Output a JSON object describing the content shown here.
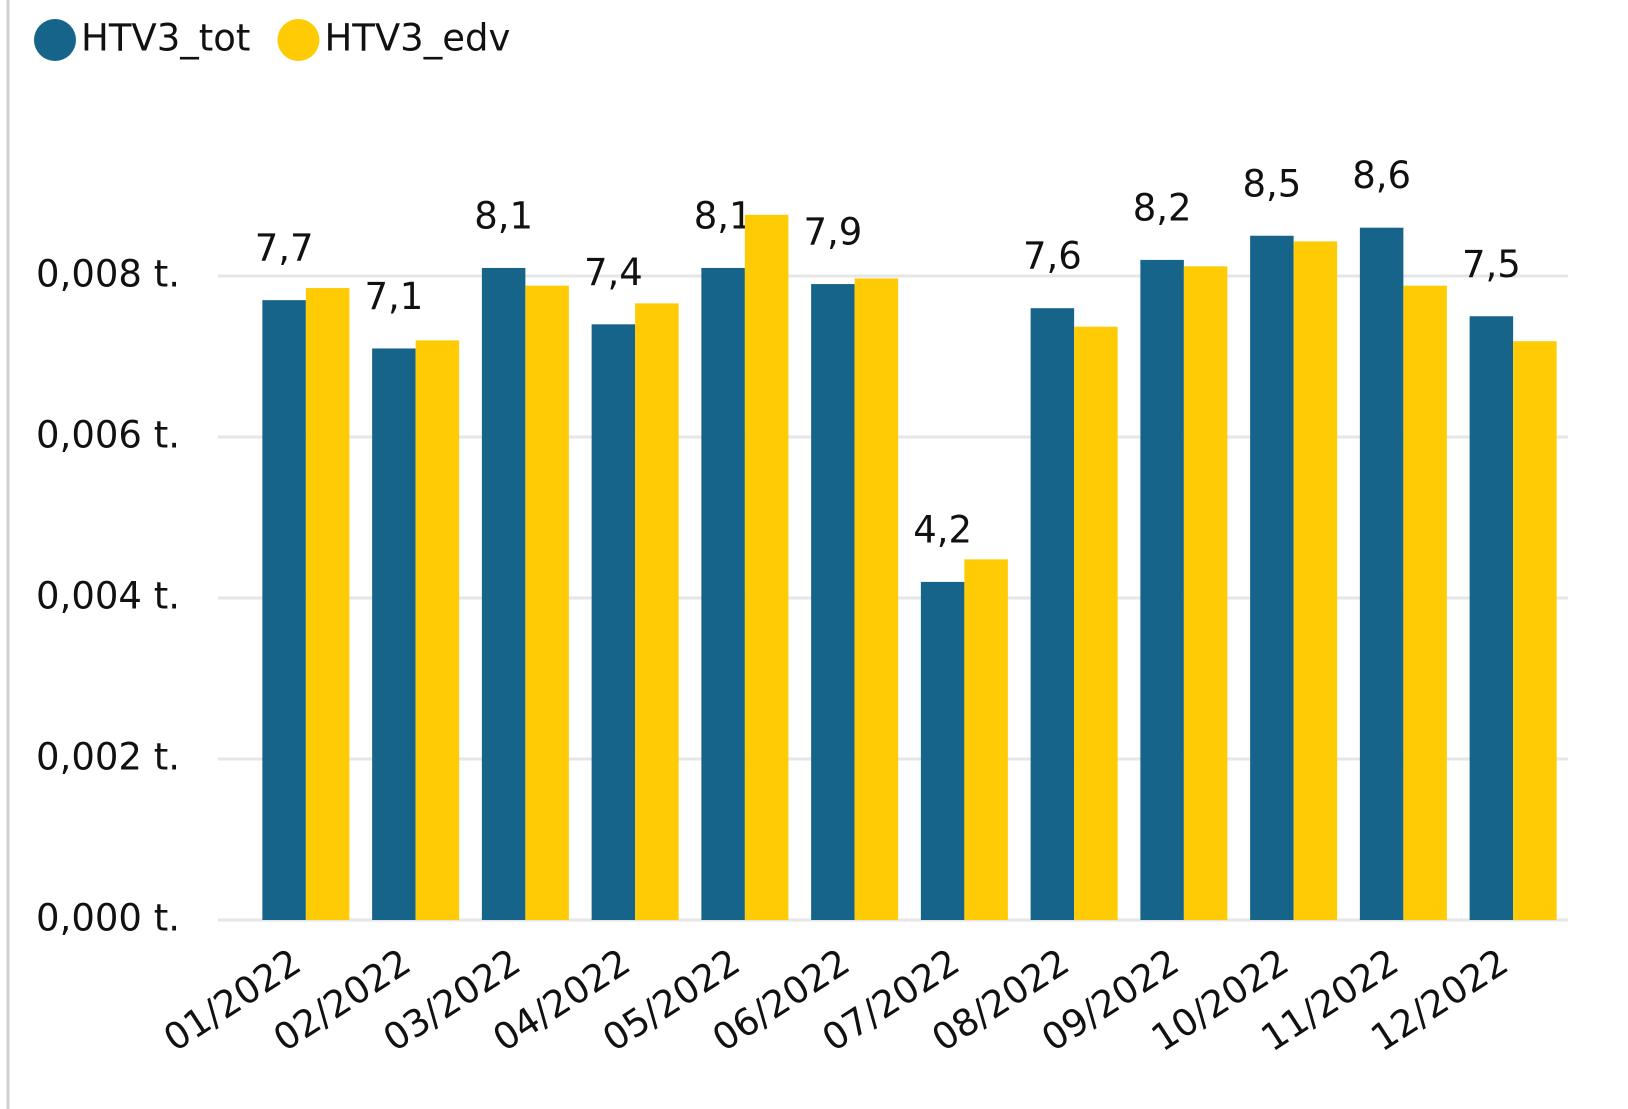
{
  "chart_data": {
    "type": "bar",
    "categories": [
      "01/2022",
      "02/2022",
      "03/2022",
      "04/2022",
      "05/2022",
      "06/2022",
      "07/2022",
      "08/2022",
      "09/2022",
      "10/2022",
      "11/2022",
      "12/2022"
    ],
    "series": [
      {
        "name": "HTV3_tot",
        "color": "#17648b",
        "values": [
          0.0077,
          0.0071,
          0.0081,
          0.0074,
          0.0081,
          0.0079,
          0.0042,
          0.0076,
          0.0082,
          0.0085,
          0.0086,
          0.0075
        ],
        "value_labels": [
          "7,7",
          "7,1",
          "8,1",
          "7,4",
          "8,1",
          "7,9",
          "4,2",
          "7,6",
          "8,2",
          "8,5",
          "8,6",
          "7,5"
        ]
      },
      {
        "name": "HTV3_edv",
        "color": "#fecb05",
        "values": [
          0.00785,
          0.0072,
          0.00788,
          0.00766,
          0.00876,
          0.00797,
          0.00448,
          0.00737,
          0.00812,
          0.00843,
          0.00788,
          0.00719
        ]
      }
    ],
    "ylim": [
      0,
      0.01
    ],
    "yticks": [
      {
        "value": 0,
        "label": "0,000 t."
      },
      {
        "value": 0.002,
        "label": "0,002 t."
      },
      {
        "value": 0.004,
        "label": "0,004 t."
      },
      {
        "value": 0.006,
        "label": "0,006 t."
      },
      {
        "value": 0.008,
        "label": "0,008 t."
      }
    ],
    "grid": true
  }
}
